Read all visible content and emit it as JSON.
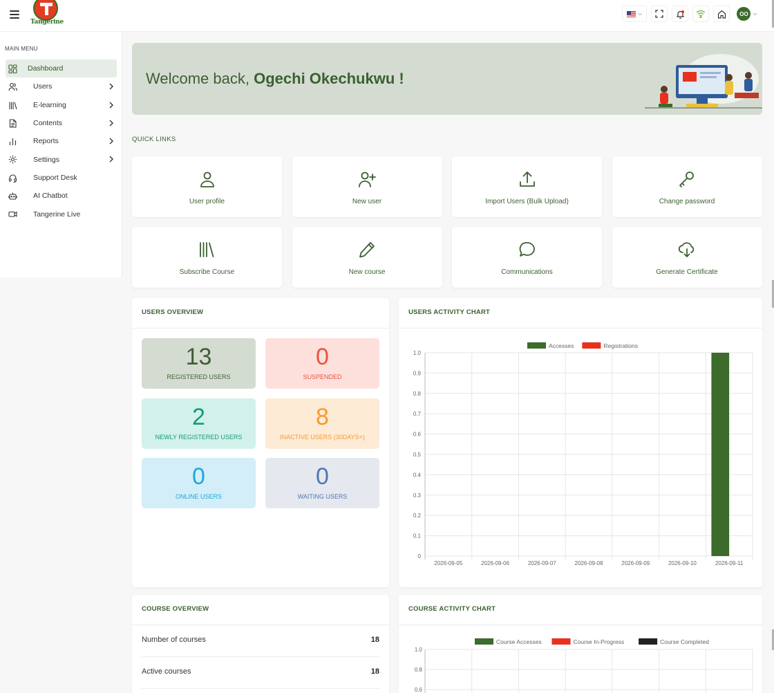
{
  "app": {
    "logo_text": "Tangerine"
  },
  "sidebar": {
    "menu_label": "MAIN MENU",
    "items": [
      {
        "label": "Dashboard",
        "icon": "dashboard-icon",
        "active": true,
        "arrow": false
      },
      {
        "label": "Users",
        "icon": "users-icon",
        "active": false,
        "arrow": true
      },
      {
        "label": "E-learning",
        "icon": "library-icon",
        "active": false,
        "arrow": true
      },
      {
        "label": "Contents",
        "icon": "document-icon",
        "active": false,
        "arrow": true
      },
      {
        "label": "Reports",
        "icon": "bar-chart-icon",
        "active": false,
        "arrow": true
      },
      {
        "label": "Settings",
        "icon": "gear-icon",
        "active": false,
        "arrow": true
      },
      {
        "label": "Support Desk",
        "icon": "headset-icon",
        "active": false,
        "arrow": false
      },
      {
        "label": "AI Chatbot",
        "icon": "robot-icon",
        "active": false,
        "arrow": false
      },
      {
        "label": "Tangerine Live",
        "icon": "video-icon",
        "active": false,
        "arrow": false
      }
    ]
  },
  "header": {
    "avatar_initials": "OO",
    "icons": [
      "us-flag-icon",
      "fullscreen-icon",
      "notification-icon",
      "wifi-icon",
      "home-icon"
    ]
  },
  "banner": {
    "greeting": "Welcome back,",
    "user_name": "Ogechi Okechukwu",
    "suffix": " !"
  },
  "quick_links": {
    "title": "QUICK LINKS",
    "items": [
      {
        "label": "User profile",
        "icon": "user-icon"
      },
      {
        "label": "New user",
        "icon": "user-plus-icon"
      },
      {
        "label": "Import Users (Bulk Upload)",
        "icon": "upload-icon"
      },
      {
        "label": "Change password",
        "icon": "key-icon"
      },
      {
        "label": "Subscribe Course",
        "icon": "library-icon"
      },
      {
        "label": "New course",
        "icon": "pencil-icon"
      },
      {
        "label": "Communications",
        "icon": "chat-bubble-icon"
      },
      {
        "label": "Generate Certificate",
        "icon": "cloud-download-icon"
      }
    ]
  },
  "users_overview": {
    "title": "USERS OVERVIEW",
    "stats": [
      {
        "value": "13",
        "label": "REGISTERED USERS",
        "bg": "#d4dcd1",
        "color": "#3c5f32"
      },
      {
        "value": "0",
        "label": "SUSPENDED",
        "bg": "#fde0dc",
        "color": "#e8533f"
      },
      {
        "value": "2",
        "label": "NEWLY REGISTERED USERS",
        "bg": "#d2f1ea",
        "color": "#139a80"
      },
      {
        "value": "8",
        "label": "INACTIVE USERS (30DAYS+)",
        "bg": "#fdebd6",
        "color": "#f59a2b"
      },
      {
        "value": "0",
        "label": "ONLINE USERS",
        "bg": "#d3eef9",
        "color": "#1fa7d8"
      },
      {
        "value": "0",
        "label": "WAITING USERS",
        "bg": "#e5e8ee",
        "color": "#4e78b5"
      }
    ]
  },
  "users_activity": {
    "title": "USERS ACTIVITY CHART",
    "chart_data": {
      "type": "bar",
      "categories": [
        "2026-09-05",
        "2026-09-06",
        "2026-09-07",
        "2026-09-08",
        "2026-09-09",
        "2026-09-10",
        "2026-09-11"
      ],
      "series": [
        {
          "name": "Accesses",
          "color": "#3c6b2b",
          "values": [
            0,
            0,
            0,
            0,
            0,
            0,
            1
          ]
        },
        {
          "name": "Registrations",
          "color": "#e8301e",
          "values": [
            0,
            0,
            0,
            0,
            0,
            0,
            0
          ]
        }
      ],
      "yticks": [
        "0",
        "0.1",
        "0.2",
        "0.3",
        "0.4",
        "0.5",
        "0.6",
        "0.7",
        "0.8",
        "0.9",
        "1.0"
      ],
      "ylim": [
        0,
        1
      ],
      "grid": true,
      "legend": "top-center"
    }
  },
  "course_overview": {
    "title": "COURSE OVERVIEW",
    "rows": [
      {
        "label": "Number of courses",
        "value": "18"
      },
      {
        "label": "Active courses",
        "value": "18"
      }
    ]
  },
  "course_activity": {
    "title": "COURSE ACTIVITY CHART",
    "chart_data": {
      "type": "bar",
      "series": [
        {
          "name": "Course Accesses",
          "color": "#3c6b2b"
        },
        {
          "name": "Course In-Progress",
          "color": "#e8301e"
        },
        {
          "name": "Course Completed",
          "color": "#222222"
        }
      ],
      "yticks_visible": [
        "1.0",
        "0.8",
        "0.6"
      ],
      "ylim": [
        0,
        1
      ],
      "grid": true,
      "legend": "top-center"
    }
  }
}
